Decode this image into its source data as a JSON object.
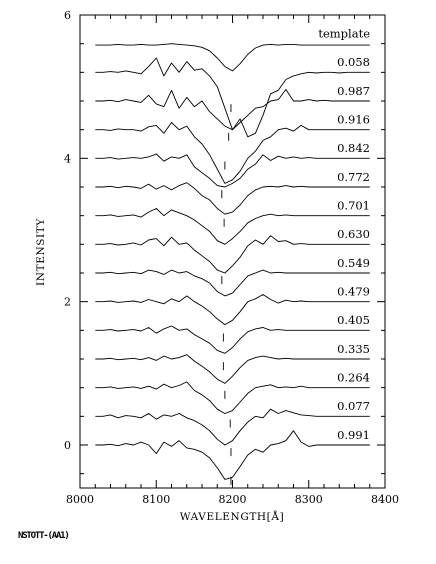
{
  "chart_data": {
    "type": "line",
    "xlabel": "WAVELENGTH[Å]",
    "ylabel": "INTENSITY",
    "xlim": [
      8000,
      8400
    ],
    "ylim": [
      -0.6,
      6.0
    ],
    "x_ticks": [
      8000,
      8100,
      8200,
      8300,
      8400
    ],
    "y_ticks": [
      0,
      2,
      4,
      6
    ],
    "x_tick_labels": [
      "8000",
      "8100",
      "8200",
      "8300",
      "8400"
    ],
    "y_tick_labels": [
      "0",
      "2",
      "4",
      "6"
    ],
    "x": [
      8020,
      8030,
      8040,
      8050,
      8060,
      8070,
      8080,
      8090,
      8100,
      8110,
      8120,
      8130,
      8140,
      8150,
      8160,
      8170,
      8180,
      8190,
      8200,
      8210,
      8220,
      8230,
      8240,
      8250,
      8260,
      8270,
      8280,
      8290,
      8300,
      8310,
      8320,
      8330,
      8340,
      8350,
      8360,
      8370,
      8380
    ],
    "series": [
      {
        "name": "template",
        "offset": 5.6,
        "marker_x": null,
        "values": [
          5.58,
          5.58,
          5.58,
          5.59,
          5.58,
          5.58,
          5.59,
          5.58,
          5.58,
          5.59,
          5.6,
          5.59,
          5.58,
          5.57,
          5.55,
          5.5,
          5.4,
          5.28,
          5.22,
          5.32,
          5.45,
          5.54,
          5.58,
          5.59,
          5.58,
          5.59,
          5.59,
          5.58,
          5.58,
          5.58,
          5.58,
          5.58,
          5.58,
          5.58,
          5.58,
          5.58,
          5.58
        ]
      },
      {
        "name": "0.058",
        "offset": 5.2,
        "marker_x": 8198,
        "values": [
          5.2,
          5.2,
          5.21,
          5.2,
          5.22,
          5.2,
          5.18,
          5.28,
          5.4,
          5.15,
          5.33,
          5.2,
          5.35,
          5.23,
          5.25,
          5.15,
          5.0,
          4.7,
          4.4,
          4.55,
          4.3,
          4.35,
          4.6,
          4.9,
          4.95,
          5.1,
          5.15,
          5.18,
          5.2,
          5.19,
          5.2,
          5.2,
          5.19,
          5.2,
          5.2,
          5.2,
          5.2
        ]
      },
      {
        "name": "0.987",
        "offset": 4.8,
        "marker_x": 8195,
        "values": [
          4.8,
          4.8,
          4.81,
          4.79,
          4.82,
          4.8,
          4.78,
          4.88,
          4.76,
          4.72,
          4.95,
          4.7,
          4.85,
          4.72,
          4.8,
          4.65,
          4.55,
          4.45,
          4.4,
          4.5,
          4.6,
          4.7,
          4.72,
          4.8,
          4.82,
          4.96,
          4.8,
          4.8,
          4.82,
          4.8,
          4.81,
          4.8,
          4.8,
          4.8,
          4.8,
          4.8,
          4.8
        ]
      },
      {
        "name": "0.916",
        "offset": 4.4,
        "marker_x": 8190,
        "values": [
          4.4,
          4.4,
          4.39,
          4.41,
          4.4,
          4.4,
          4.38,
          4.44,
          4.46,
          4.35,
          4.5,
          4.4,
          4.45,
          4.3,
          4.2,
          4.05,
          3.85,
          3.65,
          3.7,
          3.82,
          4.0,
          4.1,
          4.25,
          4.3,
          4.4,
          4.42,
          4.38,
          4.46,
          4.4,
          4.4,
          4.4,
          4.4,
          4.4,
          4.4,
          4.4,
          4.4,
          4.4
        ]
      },
      {
        "name": "0.842",
        "offset": 4.0,
        "marker_x": 8186,
        "values": [
          4.0,
          4.0,
          4.01,
          3.99,
          4.0,
          4.01,
          4.0,
          4.02,
          4.06,
          3.96,
          4.02,
          4.0,
          4.05,
          3.88,
          3.8,
          3.72,
          3.62,
          3.6,
          3.65,
          3.72,
          3.85,
          3.92,
          4.05,
          3.97,
          4.03,
          4.0,
          4.02,
          4.0,
          4.01,
          4.0,
          4.0,
          4.0,
          4.0,
          4.0,
          4.0,
          4.0,
          4.0
        ]
      },
      {
        "name": "0.772",
        "offset": 3.6,
        "marker_x": 8189,
        "values": [
          3.6,
          3.6,
          3.61,
          3.59,
          3.61,
          3.6,
          3.58,
          3.64,
          3.57,
          3.62,
          3.56,
          3.62,
          3.66,
          3.58,
          3.48,
          3.42,
          3.3,
          3.22,
          3.25,
          3.35,
          3.48,
          3.56,
          3.6,
          3.61,
          3.6,
          3.62,
          3.6,
          3.61,
          3.6,
          3.6,
          3.6,
          3.6,
          3.6,
          3.6,
          3.6,
          3.6,
          3.6
        ]
      },
      {
        "name": "0.701",
        "offset": 3.2,
        "marker_x": null,
        "values": [
          3.2,
          3.2,
          3.21,
          3.19,
          3.2,
          3.21,
          3.18,
          3.25,
          3.3,
          3.2,
          3.28,
          3.24,
          3.2,
          3.14,
          3.06,
          2.98,
          2.85,
          2.8,
          2.88,
          2.98,
          3.1,
          3.16,
          3.2,
          3.22,
          3.2,
          3.21,
          3.2,
          3.2,
          3.2,
          3.2,
          3.2,
          3.2,
          3.2,
          3.2,
          3.2,
          3.2,
          3.2
        ]
      },
      {
        "name": "0.630",
        "offset": 2.8,
        "marker_x": 8186,
        "values": [
          2.8,
          2.8,
          2.81,
          2.79,
          2.8,
          2.82,
          2.79,
          2.86,
          2.88,
          2.78,
          2.9,
          2.8,
          2.82,
          2.72,
          2.64,
          2.56,
          2.44,
          2.4,
          2.5,
          2.62,
          2.78,
          2.86,
          2.8,
          2.92,
          2.84,
          2.85,
          2.8,
          2.81,
          2.8,
          2.8,
          2.8,
          2.8,
          2.8,
          2.8,
          2.8,
          2.8,
          2.8
        ]
      },
      {
        "name": "0.549",
        "offset": 2.4,
        "marker_x": null,
        "values": [
          2.4,
          2.4,
          2.41,
          2.39,
          2.4,
          2.41,
          2.39,
          2.44,
          2.42,
          2.38,
          2.44,
          2.4,
          2.42,
          2.36,
          2.32,
          2.26,
          2.14,
          2.08,
          2.12,
          2.24,
          2.36,
          2.4,
          2.44,
          2.4,
          2.41,
          2.4,
          2.4,
          2.4,
          2.4,
          2.4,
          2.4,
          2.4,
          2.4,
          2.4,
          2.4,
          2.4,
          2.4
        ]
      },
      {
        "name": "0.479",
        "offset": 2.0,
        "marker_x": 8188,
        "values": [
          2.0,
          2.0,
          2.01,
          1.99,
          2.0,
          2.01,
          1.99,
          2.03,
          2.0,
          1.97,
          2.04,
          2.0,
          2.08,
          2.0,
          1.94,
          1.86,
          1.76,
          1.68,
          1.74,
          1.86,
          2.0,
          2.04,
          2.1,
          2.03,
          1.98,
          2.02,
          2.0,
          2.01,
          2.0,
          2.0,
          2.0,
          2.0,
          2.0,
          2.0,
          2.0,
          2.0,
          2.0
        ]
      },
      {
        "name": "0.405",
        "offset": 1.6,
        "marker_x": 8188,
        "values": [
          1.6,
          1.6,
          1.61,
          1.59,
          1.6,
          1.61,
          1.59,
          1.64,
          1.56,
          1.62,
          1.66,
          1.6,
          1.62,
          1.54,
          1.48,
          1.42,
          1.32,
          1.28,
          1.36,
          1.48,
          1.58,
          1.62,
          1.64,
          1.6,
          1.61,
          1.6,
          1.6,
          1.6,
          1.6,
          1.6,
          1.6,
          1.6,
          1.6,
          1.6,
          1.6,
          1.6,
          1.6
        ]
      },
      {
        "name": "0.335",
        "offset": 1.2,
        "marker_x": 8190,
        "values": [
          1.2,
          1.2,
          1.21,
          1.19,
          1.2,
          1.21,
          1.19,
          1.22,
          1.18,
          1.24,
          1.2,
          1.22,
          1.26,
          1.17,
          1.1,
          1.02,
          0.92,
          0.86,
          0.96,
          1.08,
          1.18,
          1.22,
          1.24,
          1.22,
          1.2,
          1.21,
          1.2,
          1.2,
          1.2,
          1.2,
          1.2,
          1.2,
          1.2,
          1.2,
          1.2,
          1.2,
          1.2
        ]
      },
      {
        "name": "0.264",
        "offset": 0.8,
        "marker_x": 8197,
        "values": [
          0.8,
          0.8,
          0.81,
          0.79,
          0.8,
          0.81,
          0.79,
          0.82,
          0.78,
          0.85,
          0.8,
          0.83,
          0.88,
          0.76,
          0.7,
          0.62,
          0.5,
          0.44,
          0.48,
          0.6,
          0.72,
          0.8,
          0.82,
          0.84,
          0.8,
          0.81,
          0.8,
          0.82,
          0.8,
          0.8,
          0.8,
          0.8,
          0.8,
          0.8,
          0.8,
          0.8,
          0.8
        ]
      },
      {
        "name": "0.077",
        "offset": 0.4,
        "marker_x": 8198,
        "values": [
          0.4,
          0.4,
          0.42,
          0.38,
          0.41,
          0.4,
          0.38,
          0.44,
          0.36,
          0.42,
          0.4,
          0.44,
          0.38,
          0.34,
          0.28,
          0.2,
          0.08,
          0.0,
          0.06,
          0.2,
          0.32,
          0.4,
          0.38,
          0.5,
          0.44,
          0.48,
          0.45,
          0.42,
          0.41,
          0.4,
          0.4,
          0.4,
          0.4,
          0.4,
          0.4,
          0.4,
          0.4
        ]
      },
      {
        "name": "0.991",
        "offset": 0.0,
        "marker_x": 8198,
        "values": [
          0.0,
          0.0,
          0.01,
          -0.01,
          0.02,
          0.0,
          0.04,
          0.0,
          -0.12,
          0.04,
          -0.02,
          0.06,
          -0.04,
          -0.06,
          -0.1,
          -0.18,
          -0.32,
          -0.48,
          -0.45,
          -0.3,
          -0.14,
          -0.06,
          -0.1,
          0.0,
          0.02,
          0.06,
          0.2,
          0.04,
          -0.02,
          0.0,
          0.0,
          0.0,
          0.0,
          0.0,
          0.0,
          0.0,
          0.0
        ]
      }
    ],
    "grid": false,
    "legend": "right-side labels"
  },
  "footer": {
    "text": "NSTOTT-(AA1)"
  }
}
